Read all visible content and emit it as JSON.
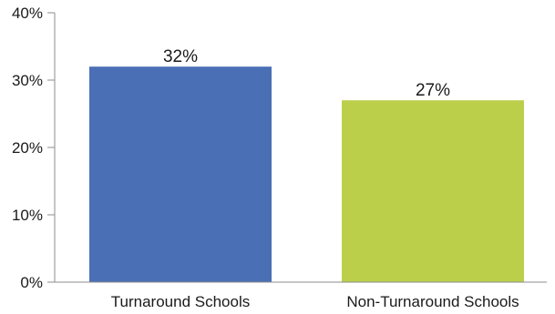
{
  "chart_data": {
    "type": "bar",
    "title": "",
    "xlabel": "",
    "ylabel": "",
    "categories": [
      "Turnaround Schools",
      "Non-Turnaround Schools"
    ],
    "values": [
      32,
      27
    ],
    "data_labels": [
      "32%",
      "27%"
    ],
    "colors": [
      "#4a6fb5",
      "#bccf4b"
    ],
    "ylim": [
      0,
      40
    ],
    "y_ticks": [
      0,
      10,
      20,
      30,
      40
    ],
    "y_tick_labels": [
      "0%",
      "10%",
      "20%",
      "30%",
      "40%"
    ],
    "grid": false,
    "legend": "none"
  }
}
